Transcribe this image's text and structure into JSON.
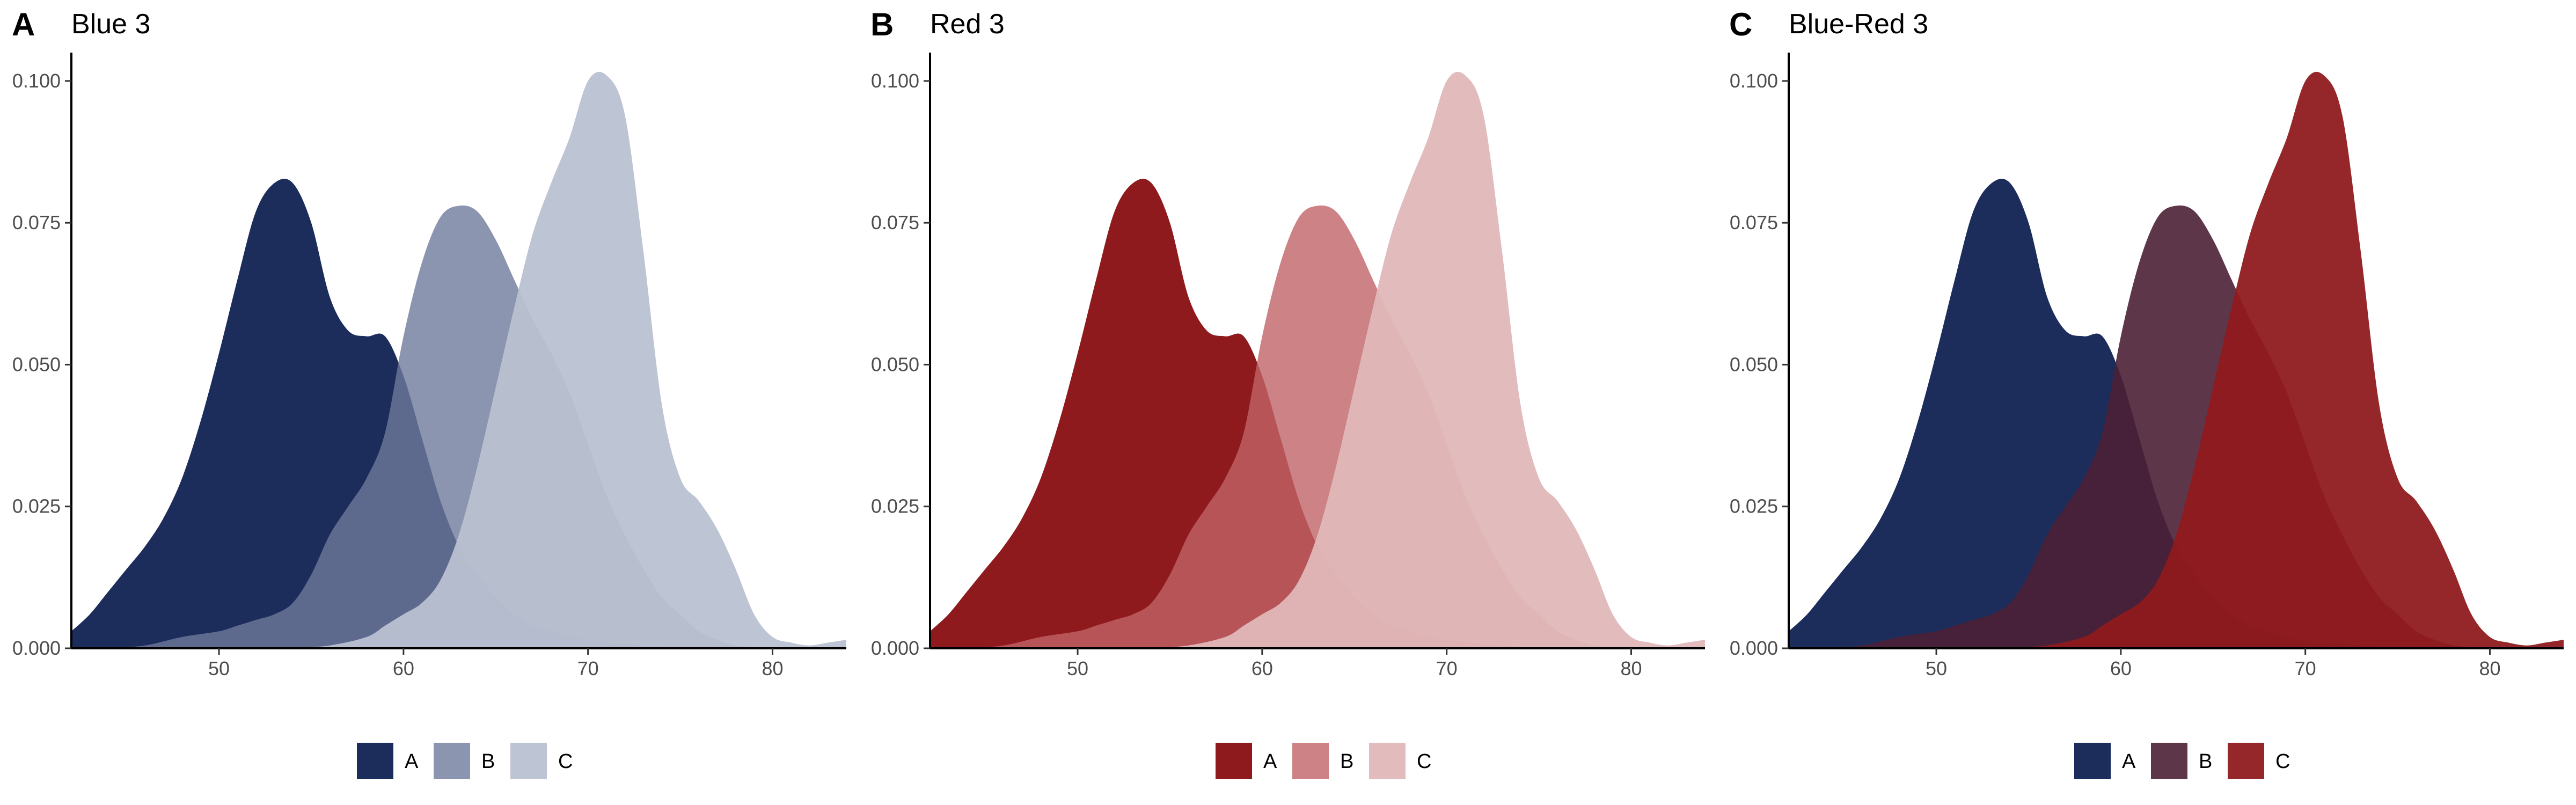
{
  "chart_data": [
    {
      "type": "area",
      "panel_tag": "A",
      "title": "Blue 3",
      "xlabel": "",
      "ylabel": "",
      "xlim": [
        42,
        84
      ],
      "ylim": [
        0,
        0.105
      ],
      "xticks": [
        "50",
        "60",
        "70",
        "80"
      ],
      "yticks": [
        "0.000",
        "0.025",
        "0.050",
        "0.075",
        "0.100"
      ],
      "grid": false,
      "legend_position": "bottom",
      "series": [
        {
          "name": "A",
          "color": "#1c2c5b",
          "opacity": 1.0,
          "x": [
            42,
            43,
            44,
            45,
            46,
            47,
            48,
            49,
            50,
            51,
            52,
            53,
            54,
            55,
            56,
            57,
            58,
            59,
            60,
            61,
            62,
            63,
            64,
            65,
            66,
            67,
            68,
            69,
            70,
            71,
            72,
            73,
            74,
            75,
            76,
            77
          ],
          "y": [
            0.003,
            0.006,
            0.01,
            0.014,
            0.018,
            0.023,
            0.03,
            0.04,
            0.052,
            0.065,
            0.077,
            0.082,
            0.082,
            0.075,
            0.062,
            0.056,
            0.055,
            0.055,
            0.048,
            0.037,
            0.026,
            0.018,
            0.013,
            0.009,
            0.006,
            0.004,
            0.003,
            0.002,
            0.0015,
            0.001,
            0.0008,
            0.0005,
            0.0003,
            0.0002,
            0.0001,
            0
          ]
        },
        {
          "name": "B",
          "color": "#6e7a9b",
          "opacity": 0.8,
          "x": [
            44,
            46,
            48,
            50,
            51,
            52,
            53,
            54,
            55,
            56,
            57,
            58,
            59,
            60,
            61,
            62,
            63,
            64,
            65,
            66,
            67,
            68,
            69,
            70,
            71,
            72,
            73,
            74,
            75,
            76,
            77,
            78,
            79,
            80
          ],
          "y": [
            0,
            0.0005,
            0.002,
            0.003,
            0.004,
            0.005,
            0.006,
            0.008,
            0.013,
            0.02,
            0.025,
            0.03,
            0.038,
            0.055,
            0.068,
            0.076,
            0.078,
            0.077,
            0.072,
            0.065,
            0.058,
            0.052,
            0.045,
            0.036,
            0.027,
            0.02,
            0.014,
            0.009,
            0.006,
            0.003,
            0.0015,
            0.0005,
            0.0002,
            0
          ]
        },
        {
          "name": "C",
          "color": "#b9c1d1",
          "opacity": 0.95,
          "x": [
            54,
            56,
            58,
            59,
            60,
            61,
            62,
            63,
            64,
            65,
            66,
            67,
            68,
            69,
            70,
            71,
            72,
            73,
            74,
            75,
            76,
            77,
            78,
            79,
            80,
            81,
            82,
            83,
            84
          ],
          "y": [
            0,
            0.0005,
            0.002,
            0.004,
            0.006,
            0.008,
            0.012,
            0.02,
            0.032,
            0.046,
            0.06,
            0.073,
            0.082,
            0.09,
            0.1,
            0.101,
            0.094,
            0.07,
            0.043,
            0.03,
            0.026,
            0.021,
            0.014,
            0.006,
            0.002,
            0.001,
            0.0005,
            0.001,
            0.0015
          ]
        }
      ]
    },
    {
      "type": "area",
      "panel_tag": "B",
      "title": "Red 3",
      "xlabel": "",
      "ylabel": "",
      "xlim": [
        42,
        84
      ],
      "ylim": [
        0,
        0.105
      ],
      "xticks": [
        "50",
        "60",
        "70",
        "80"
      ],
      "yticks": [
        "0.000",
        "0.025",
        "0.050",
        "0.075",
        "0.100"
      ],
      "grid": false,
      "legend_position": "bottom",
      "series": [
        {
          "name": "A",
          "color": "#8f1a1e",
          "opacity": 1.0,
          "x": [
            42,
            43,
            44,
            45,
            46,
            47,
            48,
            49,
            50,
            51,
            52,
            53,
            54,
            55,
            56,
            57,
            58,
            59,
            60,
            61,
            62,
            63,
            64,
            65,
            66,
            67,
            68,
            69,
            70,
            71,
            72,
            73,
            74,
            75,
            76,
            77
          ],
          "y": [
            0.003,
            0.006,
            0.01,
            0.014,
            0.018,
            0.023,
            0.03,
            0.04,
            0.052,
            0.065,
            0.077,
            0.082,
            0.082,
            0.075,
            0.062,
            0.056,
            0.055,
            0.055,
            0.048,
            0.037,
            0.026,
            0.018,
            0.013,
            0.009,
            0.006,
            0.004,
            0.003,
            0.002,
            0.0015,
            0.001,
            0.0008,
            0.0005,
            0.0003,
            0.0002,
            0.0001,
            0
          ]
        },
        {
          "name": "B",
          "color": "#c06366",
          "opacity": 0.8,
          "x": [
            44,
            46,
            48,
            50,
            51,
            52,
            53,
            54,
            55,
            56,
            57,
            58,
            59,
            60,
            61,
            62,
            63,
            64,
            65,
            66,
            67,
            68,
            69,
            70,
            71,
            72,
            73,
            74,
            75,
            76,
            77,
            78,
            79,
            80
          ],
          "y": [
            0,
            0.0005,
            0.002,
            0.003,
            0.004,
            0.005,
            0.006,
            0.008,
            0.013,
            0.02,
            0.025,
            0.03,
            0.038,
            0.055,
            0.068,
            0.076,
            0.078,
            0.077,
            0.072,
            0.065,
            0.058,
            0.052,
            0.045,
            0.036,
            0.027,
            0.02,
            0.014,
            0.009,
            0.006,
            0.003,
            0.0015,
            0.0005,
            0.0002,
            0
          ]
        },
        {
          "name": "C",
          "color": "#e0b7b8",
          "opacity": 0.95,
          "x": [
            54,
            56,
            58,
            59,
            60,
            61,
            62,
            63,
            64,
            65,
            66,
            67,
            68,
            69,
            70,
            71,
            72,
            73,
            74,
            75,
            76,
            77,
            78,
            79,
            80,
            81,
            82,
            83,
            84
          ],
          "y": [
            0,
            0.0005,
            0.002,
            0.004,
            0.006,
            0.008,
            0.012,
            0.02,
            0.032,
            0.046,
            0.06,
            0.073,
            0.082,
            0.09,
            0.1,
            0.101,
            0.094,
            0.07,
            0.043,
            0.03,
            0.026,
            0.021,
            0.014,
            0.006,
            0.002,
            0.001,
            0.0005,
            0.001,
            0.0015
          ]
        }
      ]
    },
    {
      "type": "area",
      "panel_tag": "C",
      "title": "Blue-Red 3",
      "xlabel": "",
      "ylabel": "",
      "xlim": [
        42,
        84
      ],
      "ylim": [
        0,
        0.105
      ],
      "xticks": [
        "50",
        "60",
        "70",
        "80"
      ],
      "yticks": [
        "0.000",
        "0.025",
        "0.050",
        "0.075",
        "0.100"
      ],
      "grid": false,
      "legend_position": "bottom",
      "series": [
        {
          "name": "A",
          "color": "#1c2c5b",
          "opacity": 1.0,
          "x": [
            42,
            43,
            44,
            45,
            46,
            47,
            48,
            49,
            50,
            51,
            52,
            53,
            54,
            55,
            56,
            57,
            58,
            59,
            60,
            61,
            62,
            63,
            64,
            65,
            66,
            67,
            68,
            69,
            70,
            71,
            72,
            73,
            74,
            75,
            76,
            77
          ],
          "y": [
            0.003,
            0.006,
            0.01,
            0.014,
            0.018,
            0.023,
            0.03,
            0.04,
            0.052,
            0.065,
            0.077,
            0.082,
            0.082,
            0.075,
            0.062,
            0.056,
            0.055,
            0.055,
            0.048,
            0.037,
            0.026,
            0.018,
            0.013,
            0.009,
            0.006,
            0.004,
            0.003,
            0.002,
            0.0015,
            0.001,
            0.0008,
            0.0005,
            0.0003,
            0.0002,
            0.0001,
            0
          ]
        },
        {
          "name": "B",
          "color": "#4d2035",
          "opacity": 0.9,
          "x": [
            44,
            46,
            48,
            50,
            51,
            52,
            53,
            54,
            55,
            56,
            57,
            58,
            59,
            60,
            61,
            62,
            63,
            64,
            65,
            66,
            67,
            68,
            69,
            70,
            71,
            72,
            73,
            74,
            75,
            76,
            77,
            78,
            79,
            80
          ],
          "y": [
            0,
            0.0005,
            0.002,
            0.003,
            0.004,
            0.005,
            0.006,
            0.008,
            0.013,
            0.02,
            0.025,
            0.03,
            0.038,
            0.055,
            0.068,
            0.076,
            0.078,
            0.077,
            0.072,
            0.065,
            0.058,
            0.052,
            0.045,
            0.036,
            0.027,
            0.02,
            0.014,
            0.009,
            0.006,
            0.003,
            0.0015,
            0.0005,
            0.0002,
            0
          ]
        },
        {
          "name": "C",
          "color": "#8f1a1e",
          "opacity": 0.95,
          "x": [
            54,
            56,
            58,
            59,
            60,
            61,
            62,
            63,
            64,
            65,
            66,
            67,
            68,
            69,
            70,
            71,
            72,
            73,
            74,
            75,
            76,
            77,
            78,
            79,
            80,
            81,
            82,
            83,
            84
          ],
          "y": [
            0,
            0.0005,
            0.002,
            0.004,
            0.006,
            0.008,
            0.012,
            0.02,
            0.032,
            0.046,
            0.06,
            0.073,
            0.082,
            0.09,
            0.1,
            0.101,
            0.094,
            0.07,
            0.043,
            0.03,
            0.026,
            0.021,
            0.014,
            0.006,
            0.002,
            0.001,
            0.0005,
            0.001,
            0.0015
          ]
        }
      ]
    }
  ]
}
